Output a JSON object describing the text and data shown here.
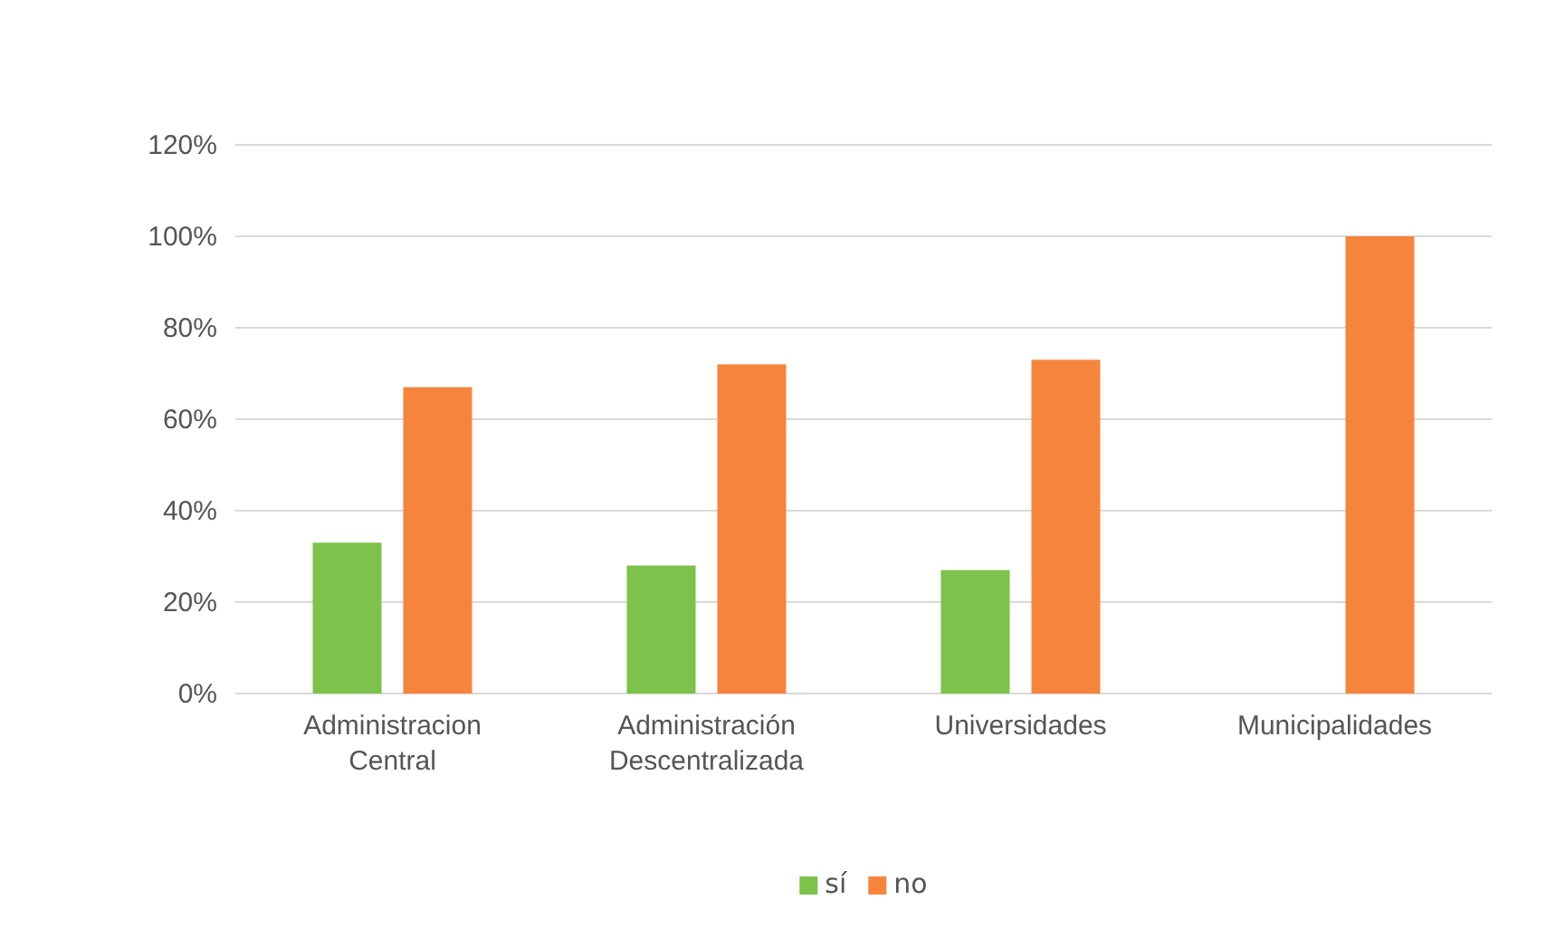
{
  "chart_data": {
    "type": "bar",
    "categories": [
      "Administracion Central",
      "Administración Descentralizada",
      "Universidades",
      "Municipalidades"
    ],
    "series": [
      {
        "name": "sí",
        "color": "#7dc24b",
        "values": [
          33,
          28,
          27,
          0
        ]
      },
      {
        "name": "no",
        "color": "#f7843d",
        "values": [
          67,
          72,
          73,
          100
        ]
      }
    ],
    "ylim": [
      0,
      120
    ],
    "yticks": [
      {
        "value": 0,
        "label": "0%"
      },
      {
        "value": 20,
        "label": "20%"
      },
      {
        "value": 40,
        "label": "40%"
      },
      {
        "value": 60,
        "label": "60%"
      },
      {
        "value": 80,
        "label": "80%"
      },
      {
        "value": 100,
        "label": "100%"
      },
      {
        "value": 120,
        "label": "120%"
      }
    ],
    "grid": "y",
    "legend": "bottom"
  }
}
